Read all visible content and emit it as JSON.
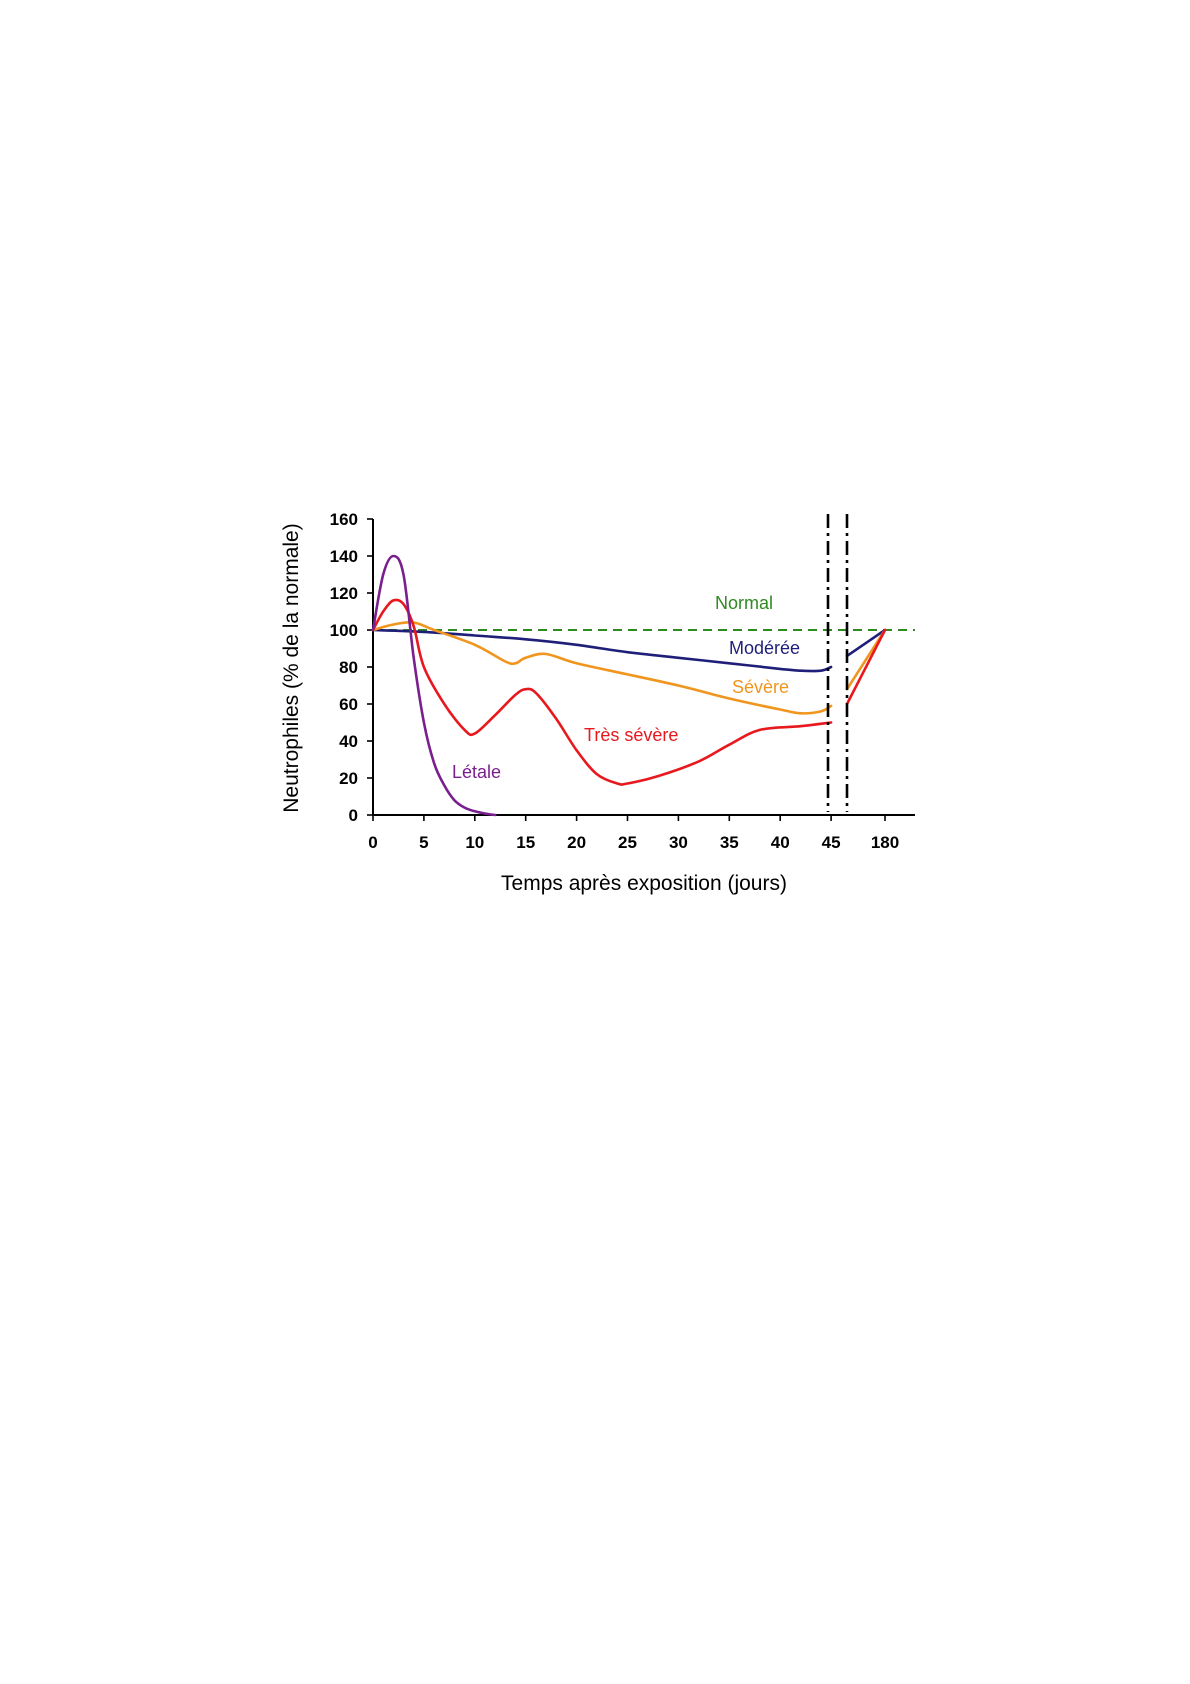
{
  "chart_data": {
    "type": "line",
    "xlabel": "Temps après exposition (jours)",
    "ylabel": "Neutrophiles (% de la normale)",
    "ylim": [
      0,
      160
    ],
    "yticks": [
      0,
      20,
      40,
      60,
      80,
      100,
      120,
      140,
      160
    ],
    "xticks": [
      {
        "label": "0",
        "value": 0
      },
      {
        "label": "5",
        "value": 5
      },
      {
        "label": "10",
        "value": 10
      },
      {
        "label": "15",
        "value": 15
      },
      {
        "label": "20",
        "value": 20
      },
      {
        "label": "25",
        "value": 25
      },
      {
        "label": "30",
        "value": 30
      },
      {
        "label": "35",
        "value": 35
      },
      {
        "label": "40",
        "value": 40
      },
      {
        "label": "45",
        "value": 45
      },
      {
        "label": "180",
        "value": 180
      }
    ],
    "axis_break": {
      "after": 45,
      "before": 180
    },
    "grid": false,
    "series": [
      {
        "name": "Normal",
        "color": "#2e8b22",
        "dashed": true,
        "points": [
          [
            0,
            100
          ],
          [
            45,
            100
          ],
          [
            180,
            100
          ]
        ]
      },
      {
        "name": "Modérée",
        "color": "#1f1f7a",
        "points": [
          [
            0,
            100
          ],
          [
            5,
            99
          ],
          [
            10,
            97
          ],
          [
            15,
            95
          ],
          [
            20,
            92
          ],
          [
            25,
            88
          ],
          [
            30,
            85
          ],
          [
            35,
            82
          ],
          [
            40,
            79
          ],
          [
            42,
            78
          ],
          [
            44,
            78
          ],
          [
            45,
            80
          ],
          [
            180,
            100
          ]
        ],
        "post_break_start": 86
      },
      {
        "name": "Sévère",
        "color": "#f0961e",
        "points": [
          [
            0,
            100
          ],
          [
            2,
            103
          ],
          [
            4,
            104
          ],
          [
            6,
            100
          ],
          [
            10,
            92
          ],
          [
            13,
            83
          ],
          [
            14,
            82
          ],
          [
            15,
            85
          ],
          [
            17,
            87
          ],
          [
            20,
            82
          ],
          [
            25,
            76
          ],
          [
            30,
            70
          ],
          [
            35,
            63
          ],
          [
            40,
            57
          ],
          [
            42,
            55
          ],
          [
            44,
            56
          ],
          [
            45,
            59
          ],
          [
            180,
            100
          ]
        ],
        "post_break_start": 68
      },
      {
        "name": "Très sévère",
        "color": "#e8191e",
        "points": [
          [
            0,
            100
          ],
          [
            1,
            110
          ],
          [
            2,
            116
          ],
          [
            3,
            114
          ],
          [
            4,
            102
          ],
          [
            5,
            80
          ],
          [
            7,
            60
          ],
          [
            9,
            46
          ],
          [
            10,
            44
          ],
          [
            12,
            54
          ],
          [
            14,
            65
          ],
          [
            15,
            68
          ],
          [
            16,
            66
          ],
          [
            18,
            52
          ],
          [
            20,
            35
          ],
          [
            22,
            22
          ],
          [
            24,
            17
          ],
          [
            25,
            17
          ],
          [
            28,
            21
          ],
          [
            32,
            29
          ],
          [
            35,
            38
          ],
          [
            38,
            46
          ],
          [
            42,
            48
          ],
          [
            45,
            50
          ],
          [
            180,
            100
          ]
        ],
        "post_break_start": 60
      },
      {
        "name": "Létale",
        "color": "#7a1f8e",
        "points": [
          [
            0,
            100
          ],
          [
            1,
            130
          ],
          [
            2,
            140
          ],
          [
            3,
            130
          ],
          [
            4,
            85
          ],
          [
            5,
            50
          ],
          [
            6,
            28
          ],
          [
            7,
            16
          ],
          [
            8,
            8
          ],
          [
            9,
            4
          ],
          [
            10,
            2
          ],
          [
            11,
            0.8
          ],
          [
            12,
            0
          ]
        ]
      }
    ]
  }
}
